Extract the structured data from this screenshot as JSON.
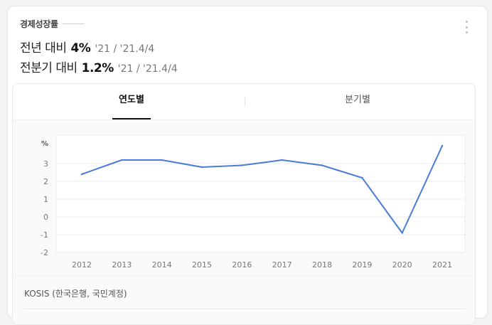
{
  "header": {
    "label": "경제성장률",
    "stats": [
      {
        "prefix": "전년 대비",
        "value": "4%",
        "period": "'21 / '21.4/4"
      },
      {
        "prefix": "전분기 대비",
        "value": "1.2%",
        "period": "'21 / '21.4/4"
      }
    ]
  },
  "tabs": [
    {
      "label": "연도별",
      "active": true
    },
    {
      "label": "분기별",
      "active": false
    }
  ],
  "source": "KOSIS (한국은행, 국민계정)",
  "colors": {
    "line": "#4a7bd8",
    "grid": "#e9ebee",
    "axis_text": "#777777"
  },
  "chart_data": {
    "type": "line",
    "title": "",
    "unit_label": "%",
    "x": [
      "2012",
      "2013",
      "2014",
      "2015",
      "2016",
      "2017",
      "2018",
      "2019",
      "2020",
      "2021"
    ],
    "series": [
      {
        "values": [
          2.4,
          3.2,
          3.2,
          2.8,
          2.9,
          3.2,
          2.9,
          2.2,
          -0.9,
          4.0
        ]
      }
    ],
    "yticks": [
      3,
      2,
      1,
      0,
      -1,
      -2
    ],
    "ylim": [
      -2,
      4.6
    ],
    "grid": true
  }
}
